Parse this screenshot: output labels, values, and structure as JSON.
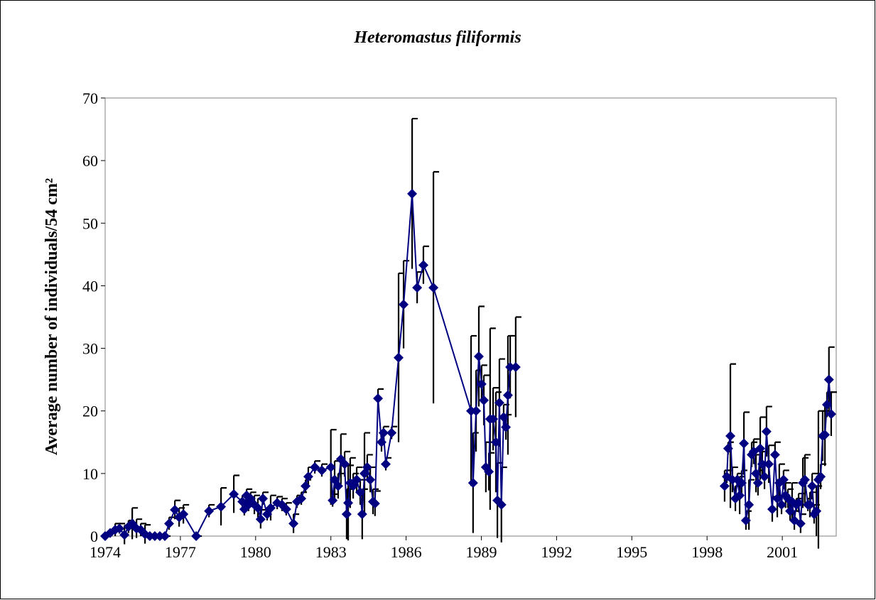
{
  "chart_data": {
    "type": "line",
    "title": "Heteromastus filiformis",
    "y_label": "Average number of individuals/54 cm²",
    "xlim": [
      1974,
      2003.15
    ],
    "xticks": [
      1974,
      1977,
      1980,
      1983,
      1986,
      1989,
      1992,
      1995,
      1998,
      2001
    ],
    "ylim": [
      0,
      70
    ],
    "yticks": [
      0,
      10,
      20,
      30,
      40,
      50,
      60,
      70
    ],
    "error_color": "#000000",
    "x": [
      1974.0,
      1974.2,
      1974.4,
      1974.57,
      1974.77,
      1974.93,
      1975.08,
      1975.25,
      1975.42,
      1975.59,
      1975.78,
      1975.98,
      1976.18,
      1976.38,
      1976.55,
      1976.78,
      1976.95,
      1977.12,
      1977.63,
      1978.14,
      1978.62,
      1979.13,
      1979.47,
      1979.55,
      1979.64,
      1979.72,
      1979.8,
      1979.95,
      1980.09,
      1980.2,
      1980.29,
      1980.46,
      1980.6,
      1980.86,
      1981.05,
      1981.22,
      1981.51,
      1981.65,
      1981.82,
      1981.99,
      1982.1,
      1982.36,
      1982.64,
      1983.0,
      1983.07,
      1983.15,
      1983.29,
      1983.4,
      1983.55,
      1983.63,
      1983.69,
      1983.77,
      1983.89,
      1984.03,
      1984.17,
      1984.25,
      1984.34,
      1984.45,
      1984.57,
      1984.68,
      1984.76,
      1984.88,
      1985.02,
      1985.1,
      1985.19,
      1985.42,
      1985.7,
      1985.9,
      1986.24,
      1986.44,
      1986.69,
      1987.09,
      1988.59,
      1988.67,
      1988.79,
      1988.9,
      1989.01,
      1989.1,
      1989.18,
      1989.3,
      1989.35,
      1989.47,
      1989.58,
      1989.64,
      1989.72,
      1989.8,
      1989.89,
      1989.98,
      1990.06,
      1990.15,
      1990.37,
      1994.5,
      1998.7,
      1998.79,
      1998.84,
      1998.93,
      1999.01,
      1999.13,
      1999.21,
      1999.3,
      1999.38,
      1999.47,
      1999.55,
      1999.67,
      1999.78,
      1999.86,
      1999.95,
      2000.03,
      2000.12,
      2000.2,
      2000.29,
      2000.37,
      2000.46,
      2000.6,
      2000.71,
      2000.8,
      2000.88,
      2000.97,
      2001.05,
      2001.13,
      2001.22,
      2001.31,
      2001.39,
      2001.48,
      2001.56,
      2001.65,
      2001.73,
      2001.82,
      2001.9,
      2002.02,
      2002.1,
      2002.19,
      2002.27,
      2002.36,
      2002.44,
      2002.53,
      2002.61,
      2002.7,
      2002.78,
      2002.86,
      2002.95
    ],
    "series": [
      {
        "color": "#000080",
        "values": [
          0,
          0.5,
          1,
          1.2,
          0.2,
          1.5,
          2,
          1.2,
          1,
          0.3,
          0,
          0,
          0,
          0,
          2,
          4.2,
          3,
          3.5,
          0,
          4,
          4.7,
          6.7,
          5.5,
          4.3,
          6.5,
          5,
          6,
          5,
          4.5,
          2.7,
          6,
          3.5,
          4.5,
          5.3,
          5,
          4.3,
          2,
          5.5,
          6,
          8,
          9.5,
          11,
          10.5,
          11,
          5.7,
          9,
          8,
          12.3,
          11.5,
          3.5,
          5.3,
          8.5,
          8,
          9,
          7,
          3.5,
          10,
          11,
          9,
          5.5,
          5.2,
          22,
          15,
          16.5,
          11.5,
          16.5,
          28.5,
          37,
          54.7,
          39.7,
          43.3,
          39.7,
          20,
          8.5,
          20,
          28.7,
          24.3,
          21.7,
          11,
          10.3,
          18.7,
          18.7,
          15,
          5.7,
          21.3,
          5,
          19,
          17.4,
          22.5,
          27,
          27,
          null,
          8,
          9.5,
          14,
          16,
          9,
          6,
          9,
          6.5,
          8.5,
          14.8,
          2.5,
          5,
          13,
          13.5,
          10,
          8.5,
          14,
          11.5,
          9.5,
          16.7,
          11.5,
          4.3,
          13,
          6,
          8.5,
          5,
          9,
          6.5,
          6,
          4,
          5.5,
          2.5,
          5,
          5.3,
          2,
          8.5,
          9,
          5,
          5,
          8,
          3.5,
          4,
          9,
          9.5,
          16,
          16.2,
          21,
          25,
          19.5
        ],
        "errors": [
          0,
          0.5,
          1,
          0.8,
          1.5,
          1,
          2.5,
          1.5,
          1,
          1.5,
          0,
          0,
          0,
          0,
          1,
          1.5,
          1.5,
          1.5,
          0,
          1,
          3,
          3,
          1,
          1,
          1,
          1,
          1,
          1.5,
          1.5,
          1.5,
          1,
          1,
          2,
          1,
          1,
          1,
          1.5,
          1,
          1,
          1,
          1.5,
          1,
          1,
          6,
          1,
          3,
          2,
          4,
          2,
          4,
          6,
          4,
          2,
          2,
          2,
          4,
          6.5,
          2,
          2,
          2,
          2,
          1.5,
          1.5,
          1,
          1,
          1,
          13.5,
          7,
          12,
          2.5,
          3,
          18.5,
          12,
          8,
          6.5,
          8,
          3,
          4,
          4,
          3,
          14.5,
          5,
          8,
          6,
          7,
          6,
          2,
          2,
          9.5,
          5,
          8,
          null,
          2.5,
          1,
          1,
          11.5,
          2,
          2,
          1,
          3,
          2,
          5,
          1.5,
          4,
          2,
          2,
          3,
          2,
          5,
          2,
          2,
          4,
          3,
          2,
          2,
          3,
          3,
          1.5,
          1.5,
          2,
          1.5,
          1.5,
          3,
          1.5,
          1,
          1.5,
          1.5,
          4,
          4,
          1,
          2,
          2,
          1.5,
          4,
          11,
          2,
          4,
          5,
          2,
          5.2,
          3.5
        ]
      }
    ]
  }
}
